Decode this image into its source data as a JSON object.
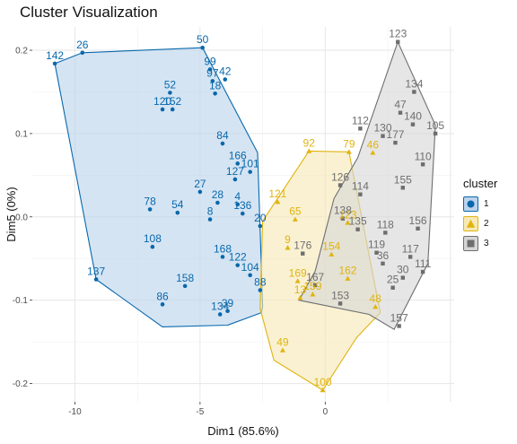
{
  "chart_data": {
    "type": "scatter",
    "title": "Cluster Visualization",
    "xlabel": "Dim1 (85.6%)",
    "ylabel": "Dim5 (0%)",
    "xlim": [
      -11.7,
      5.15
    ],
    "ylim": [
      -0.222,
      0.228
    ],
    "x_ticks": [
      -10,
      -5,
      0
    ],
    "x_tick_labels": [
      "-10",
      "-5",
      "0"
    ],
    "y_ticks": [
      0.2,
      0.1,
      0.0,
      -0.1,
      -0.2
    ],
    "y_tick_labels": [
      "0.2",
      "0.1",
      "0.0",
      "-0.1",
      "-0.2"
    ],
    "grid": true,
    "legend": {
      "title": "cluster",
      "position": "right",
      "items": [
        {
          "label": "1",
          "shape": "circle",
          "color": "#0868ac",
          "fill": "#bcd3ec"
        },
        {
          "label": "2",
          "shape": "triangle",
          "color": "#e0b40f",
          "fill": "#f6e9b6"
        },
        {
          "label": "3",
          "shape": "square",
          "color": "#6e6e6e",
          "fill": "#d6d6d6"
        }
      ]
    },
    "series": [
      {
        "name": "1",
        "color": "#0868ac",
        "fill": "#bcd3ec",
        "shape": "circle",
        "hull": [
          [
            -10.8,
            0.184
          ],
          [
            -9.7,
            0.197
          ],
          [
            -4.9,
            0.203
          ],
          [
            -2.7,
            0.077
          ],
          [
            -2.5,
            -0.108
          ],
          [
            -2.55,
            -0.115
          ],
          [
            -3.9,
            -0.13
          ],
          [
            -6.5,
            -0.132
          ],
          [
            -9.15,
            -0.075
          ]
        ],
        "points": [
          {
            "label": "142",
            "x": -10.8,
            "y": 0.184
          },
          {
            "label": "26",
            "x": -9.7,
            "y": 0.197
          },
          {
            "label": "50",
            "x": -4.9,
            "y": 0.203
          },
          {
            "label": "99",
            "x": -4.6,
            "y": 0.177
          },
          {
            "label": "97",
            "x": -4.5,
            "y": 0.163
          },
          {
            "label": "42",
            "x": -4.0,
            "y": 0.165
          },
          {
            "label": "18",
            "x": -4.4,
            "y": 0.148
          },
          {
            "label": "52",
            "x": -6.2,
            "y": 0.149
          },
          {
            "label": "120",
            "x": -6.5,
            "y": 0.129
          },
          {
            "label": "152",
            "x": -6.1,
            "y": 0.129
          },
          {
            "label": "84",
            "x": -4.1,
            "y": 0.088
          },
          {
            "label": "166",
            "x": -3.5,
            "y": 0.064
          },
          {
            "label": "101",
            "x": -3.0,
            "y": 0.054
          },
          {
            "label": "127",
            "x": -3.6,
            "y": 0.045
          },
          {
            "label": "27",
            "x": -5.0,
            "y": 0.03
          },
          {
            "label": "54",
            "x": -5.9,
            "y": 0.005
          },
          {
            "label": "78",
            "x": -7.0,
            "y": 0.009
          },
          {
            "label": "28",
            "x": -4.3,
            "y": 0.017
          },
          {
            "label": "4",
            "x": -3.5,
            "y": 0.015
          },
          {
            "label": "8",
            "x": -4.6,
            "y": -0.003
          },
          {
            "label": "136",
            "x": -3.3,
            "y": 0.004
          },
          {
            "label": "108",
            "x": -6.9,
            "y": -0.036
          },
          {
            "label": "88",
            "x": -2.6,
            "y": -0.088
          },
          {
            "label": "158",
            "x": -5.6,
            "y": -0.083
          },
          {
            "label": "137",
            "x": -9.15,
            "y": -0.075
          },
          {
            "label": "86",
            "x": -6.5,
            "y": -0.105
          },
          {
            "label": "134",
            "x": -4.2,
            "y": -0.117
          },
          {
            "label": "39",
            "x": -3.9,
            "y": -0.113
          },
          {
            "label": "168",
            "x": -4.1,
            "y": -0.048
          },
          {
            "label": "122",
            "x": -3.5,
            "y": -0.058
          },
          {
            "label": "104",
            "x": -3.0,
            "y": -0.07
          },
          {
            "label": "20",
            "x": -2.6,
            "y": -0.011
          }
        ]
      },
      {
        "name": "2",
        "color": "#e0b40f",
        "fill": "#f6e9b6",
        "shape": "triangle",
        "hull": [
          [
            -0.65,
            0.079
          ],
          [
            0.95,
            0.078
          ],
          [
            2.2,
            -0.115
          ],
          [
            1.25,
            -0.145
          ],
          [
            -0.1,
            -0.208
          ],
          [
            -2.05,
            -0.172
          ],
          [
            -2.6,
            -0.11
          ],
          [
            -2.5,
            -0.005
          ]
        ],
        "points": [
          {
            "label": "92",
            "x": -0.65,
            "y": 0.079
          },
          {
            "label": "79",
            "x": 0.95,
            "y": 0.078
          },
          {
            "label": "46",
            "x": 1.9,
            "y": 0.077
          },
          {
            "label": "121",
            "x": -1.9,
            "y": 0.018
          },
          {
            "label": "65",
            "x": -1.2,
            "y": -0.003
          },
          {
            "label": "9",
            "x": -1.5,
            "y": -0.037
          },
          {
            "label": "169",
            "x": -1.1,
            "y": -0.077
          },
          {
            "label": "13",
            "x": -1.0,
            "y": -0.097
          },
          {
            "label": "159",
            "x": -0.5,
            "y": -0.093
          },
          {
            "label": "162",
            "x": 0.9,
            "y": -0.074
          },
          {
            "label": "154",
            "x": 0.25,
            "y": -0.045
          },
          {
            "label": "48",
            "x": 2.0,
            "y": -0.108
          },
          {
            "label": "49",
            "x": -1.7,
            "y": -0.16
          },
          {
            "label": "100",
            "x": -0.1,
            "y": -0.208
          },
          {
            "label": "123",
            "x": 0.9,
            "y": -0.007
          }
        ]
      },
      {
        "name": "3",
        "color": "#6e6e6e",
        "fill": "#d6d6d6",
        "shape": "square",
        "hull": [
          [
            2.9,
            0.21
          ],
          [
            4.4,
            0.11
          ],
          [
            4.1,
            -0.056
          ],
          [
            2.75,
            -0.135
          ],
          [
            1.75,
            -0.117
          ],
          [
            -1.05,
            -0.1
          ],
          [
            -0.4,
            -0.065
          ],
          [
            0.35,
            0.022
          ],
          [
            1.3,
            0.071
          ]
        ],
        "points": [
          {
            "label": "123",
            "x": 2.9,
            "y": 0.21
          },
          {
            "label": "134",
            "x": 3.55,
            "y": 0.15
          },
          {
            "label": "47",
            "x": 3.0,
            "y": 0.125
          },
          {
            "label": "140",
            "x": 3.5,
            "y": 0.111
          },
          {
            "label": "112",
            "x": 1.4,
            "y": 0.106
          },
          {
            "label": "130",
            "x": 2.3,
            "y": 0.097
          },
          {
            "label": "177",
            "x": 2.8,
            "y": 0.089
          },
          {
            "label": "105",
            "x": 4.4,
            "y": 0.1
          },
          {
            "label": "110",
            "x": 3.9,
            "y": 0.063
          },
          {
            "label": "155",
            "x": 3.1,
            "y": 0.035
          },
          {
            "label": "126",
            "x": 0.6,
            "y": 0.038
          },
          {
            "label": "138",
            "x": 0.7,
            "y": -0.002
          },
          {
            "label": "135",
            "x": 1.3,
            "y": -0.015
          },
          {
            "label": "176",
            "x": -0.9,
            "y": -0.044
          },
          {
            "label": "167",
            "x": -0.4,
            "y": -0.082
          },
          {
            "label": "153",
            "x": 0.6,
            "y": -0.104
          },
          {
            "label": "157",
            "x": 2.95,
            "y": -0.131
          },
          {
            "label": "119",
            "x": 2.05,
            "y": -0.043
          },
          {
            "label": "36",
            "x": 2.3,
            "y": -0.056
          },
          {
            "label": "25",
            "x": 2.7,
            "y": -0.085
          },
          {
            "label": "30",
            "x": 3.1,
            "y": -0.073
          },
          {
            "label": "111",
            "x": 3.9,
            "y": -0.066
          },
          {
            "label": "118",
            "x": 2.4,
            "y": -0.019
          },
          {
            "label": "114",
            "x": 1.4,
            "y": 0.027
          },
          {
            "label": "117",
            "x": 3.4,
            "y": -0.048
          },
          {
            "label": "156",
            "x": 3.7,
            "y": -0.014
          }
        ]
      }
    ]
  }
}
